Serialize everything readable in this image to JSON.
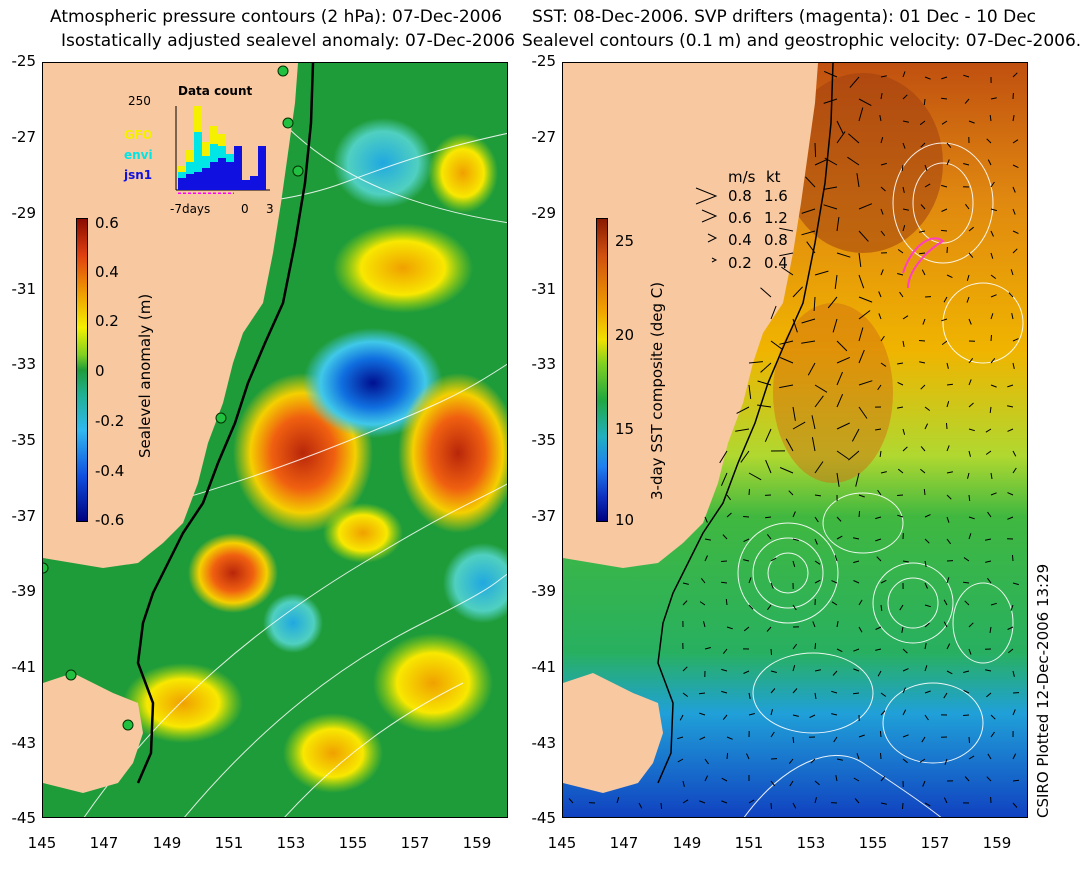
{
  "left_panel": {
    "title_line1": "Atmospheric pressure contours (2 hPa): 07-Dec-2006",
    "title_line2": "Isostatically adjusted sealevel anomaly: 07-Dec-2006",
    "colorbar": {
      "label": "Sealevel anomaly (m)",
      "ticks": [
        "0.6",
        "0.4",
        "0.2",
        "0",
        "-0.2",
        "-0.4",
        "-0.6"
      ],
      "range": [
        -0.6,
        0.6
      ]
    },
    "histogram": {
      "title": "Data count",
      "ymax_label": "250",
      "series": [
        {
          "name": "GFO",
          "color": "#f4f000"
        },
        {
          "name": "envi",
          "color": "#00e5e5"
        },
        {
          "name": "jsn1",
          "color": "#1010e0"
        }
      ],
      "xlabel_left": "-7days",
      "xlabel_mid": "0",
      "xlabel_right": "3"
    }
  },
  "right_panel": {
    "title_line1": "SST: 08-Dec-2006. SVP drifters (magenta): 01 Dec - 10 Dec",
    "title_line2": "Sealevel contours (0.1 m) and geostrophic velocity: 07-Dec-2006.",
    "colorbar": {
      "label": "3-day SST composite (deg C)",
      "ticks": [
        "25",
        "20",
        "15",
        "10"
      ],
      "range": [
        10,
        26
      ]
    },
    "velocity_legend": {
      "header_ms": "m/s",
      "header_kt": "kt",
      "rows": [
        {
          "ms": "0.8",
          "kt": "1.6"
        },
        {
          "ms": "0.6",
          "kt": "1.2"
        },
        {
          "ms": "0.4",
          "kt": "0.8"
        },
        {
          "ms": "0.2",
          "kt": "0.4"
        }
      ]
    }
  },
  "axes": {
    "lat_ticks": [
      "-25",
      "-27",
      "-29",
      "-31",
      "-33",
      "-35",
      "-37",
      "-39",
      "-41",
      "-43",
      "-45"
    ],
    "lon_ticks": [
      "145",
      "147",
      "149",
      "151",
      "153",
      "155",
      "157",
      "159"
    ]
  },
  "credit": "CSIRO Plotted 12-Dec-2006 13:29",
  "colors": {
    "land": "#f8c8a0",
    "shelf_green": "#1f9c3a",
    "coast": "#000000"
  }
}
